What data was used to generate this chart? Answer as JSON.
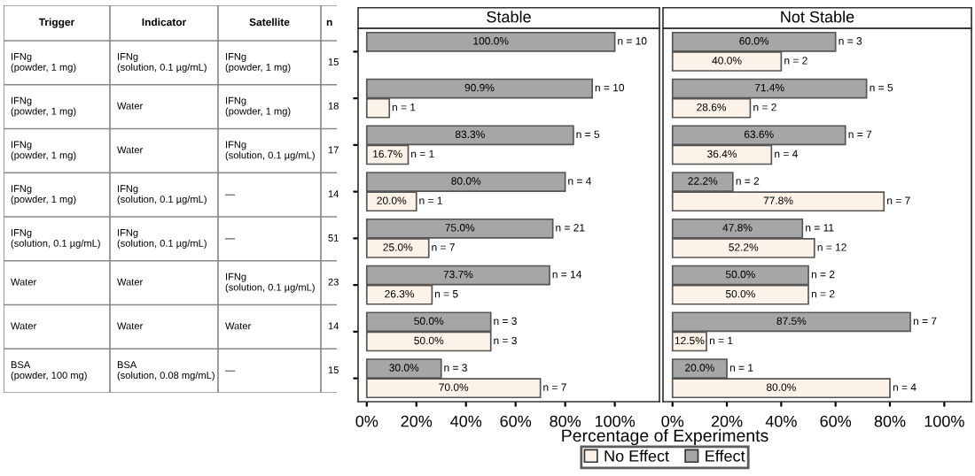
{
  "chart_data": [
    {
      "type": "other",
      "categories": [
        "Trigger",
        "Indicator",
        "Satellite",
        "n"
      ],
      "cell_labels": [
        [
          "IFNg\n(powder, 1 mg)",
          "IFNg\n(solution, 0.1 µg/mL)",
          "IFNg\n(powder, 1 mg)",
          "15"
        ],
        [
          "IFNg\n(powder, 1 mg)",
          "Water",
          "IFNg\n(powder, 1 mg)",
          "18"
        ],
        [
          "IFNg\n(powder, 1 mg)",
          "Water",
          "IFNg\n(solution, 0.1 µg/mL)",
          "17"
        ],
        [
          "IFNg\n(powder, 1 mg)",
          "IFNg\n(solution, 0.1 µg/mL)",
          "—",
          "14"
        ],
        [
          "IFNg\n(solution, 0.1 µg/mL)",
          "IFNg\n(solution, 0.1 µg/mL)",
          "—",
          "51"
        ],
        [
          "Water",
          "Water",
          "IFNg\n(solution, 0.1 µg/mL)",
          "23"
        ],
        [
          "Water",
          "Water",
          "Water",
          "14"
        ],
        [
          "BSA\n(powder, 100 mg)",
          "BSA\n(solution, 0.08 mg/mL)",
          "—",
          "15"
        ]
      ]
    },
    {
      "type": "bar",
      "orientation": "horizontal",
      "title": "Stable",
      "xlabel": "Percentage of Experiments",
      "categories": [
        null,
        null,
        null,
        null,
        null,
        null,
        null,
        null
      ],
      "series": [
        {
          "name": "No Effect",
          "color": "#fcf2e8",
          "values": [
            null,
            9.1,
            16.7,
            20.0,
            25.0,
            26.3,
            50.0,
            70.0
          ],
          "value_labels": [
            null,
            null,
            "16.7%",
            "20.0%",
            "25.0%",
            "26.3%",
            "50.0%",
            "70.0%"
          ]
        },
        {
          "name": "Effect",
          "color": "#a6a6a6",
          "values": [
            100.0,
            90.9,
            83.3,
            80.0,
            75.0,
            73.7,
            50.0,
            30.0
          ],
          "value_labels": [
            "100.0%",
            "90.9%",
            "83.3%",
            "80.0%",
            "75.0%",
            "73.7%",
            "50.0%",
            "30.0%"
          ]
        }
      ],
      "annotations": [
        "n = 1",
        "n = 1",
        "n = 1",
        "n = 7",
        "n = 5",
        "n = 3",
        "n = 7",
        "n = 10",
        "n = 10",
        "n = 5",
        "n = 4",
        "n = 21",
        "n = 14",
        "n = 3",
        "n = 3"
      ],
      "xlim": [
        -3.5,
        118
      ],
      "xticks": [
        {
          "value": 0,
          "label": "0%"
        },
        {
          "value": 20,
          "label": "20%"
        },
        {
          "value": 40,
          "label": "40%"
        },
        {
          "value": 60,
          "label": "60%"
        },
        {
          "value": 80,
          "label": "80%"
        },
        {
          "value": 100,
          "label": "100%"
        }
      ],
      "tick_labels": "x",
      "legend": "bottom"
    },
    {
      "type": "bar",
      "orientation": "horizontal",
      "title": "Not Stable",
      "categories": [
        null,
        null,
        null,
        null,
        null,
        null,
        null,
        null
      ],
      "series": [
        {
          "name": "No Effect",
          "color": "#fcf2e8",
          "values": [
            40.0,
            28.6,
            36.4,
            77.8,
            52.2,
            50.0,
            12.5,
            80.0
          ],
          "value_labels": [
            "40.0%",
            "28.6%",
            "36.4%",
            "77.8%",
            "52.2%",
            "50.0%",
            "12.5%",
            "80.0%"
          ]
        },
        {
          "name": "Effect",
          "color": "#a6a6a6",
          "values": [
            60.0,
            71.4,
            63.6,
            22.2,
            47.8,
            50.0,
            87.5,
            20.0
          ],
          "value_labels": [
            "60.0%",
            "71.4%",
            "63.6%",
            "22.2%",
            "47.8%",
            "50.0%",
            "87.5%",
            "20.0%"
          ]
        }
      ],
      "annotations": [
        "n = 2",
        "n = 2",
        "n = 4",
        "n = 7",
        "n = 12",
        "n = 2",
        "n = 1",
        "n = 4",
        "n = 3",
        "n = 5",
        "n = 7",
        "n = 2",
        "n = 11",
        "n = 2",
        "n = 7",
        "n = 1"
      ],
      "xlim": [
        -3.5,
        110
      ],
      "xticks": [
        {
          "value": 0,
          "label": "0%"
        },
        {
          "value": 20,
          "label": "20%"
        },
        {
          "value": 40,
          "label": "40%"
        },
        {
          "value": 60,
          "label": "60%"
        },
        {
          "value": 80,
          "label": "80%"
        },
        {
          "value": 100,
          "label": "100%"
        }
      ],
      "tick_labels": "x"
    }
  ]
}
